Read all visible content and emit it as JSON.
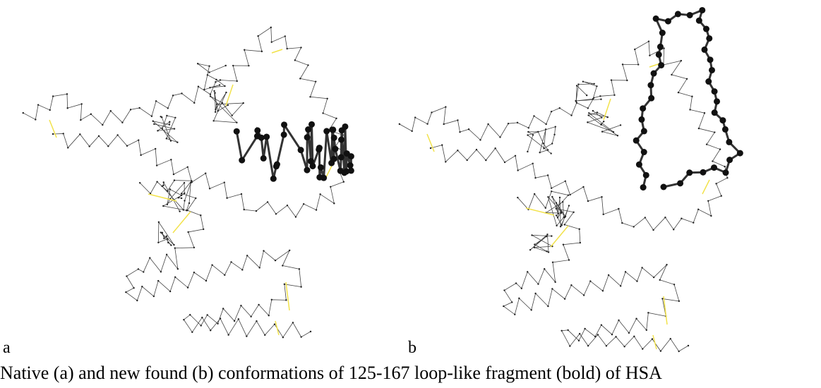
{
  "panels": [
    {
      "label": "a"
    },
    {
      "label": "b"
    }
  ],
  "caption": "Native (a) and new found (b) conformations of 125-167 loop-like fragment (bold) of HSA"
}
